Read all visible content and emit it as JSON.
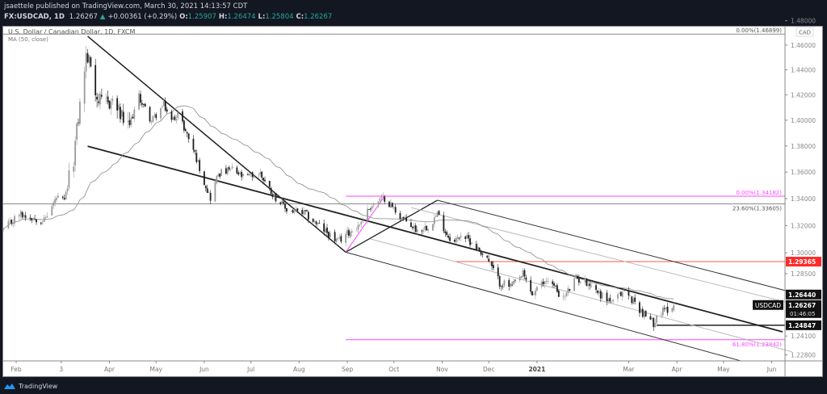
{
  "header": {
    "publish_line": "jsaettele published on TradingView.com, March 30, 2021 14:13:57 CDT",
    "symbol": "FX:USDCAD, 1D",
    "last": "1.26267",
    "change_arrow": "▲",
    "change": "+0.00361 (+0.29%)",
    "o_label": "O:",
    "o": "1.25907",
    "h_label": "H:",
    "h": "1.26474",
    "l_label": "L:",
    "l": "1.25804",
    "c_label": "C:",
    "c": "1.26267",
    "up_color": "#26a69a"
  },
  "footer": {
    "brand": "TradingView",
    "logo_icon": "tradingview-cloud-icon"
  },
  "chart_data": {
    "type": "candlestick",
    "title": "U.S. Dollar / Canadian Dollar, 1D, FXCM",
    "indicator_label": "MA (50, close)",
    "y_scale": "log",
    "currency_label": "CAD",
    "y_ticks": [
      1.48,
      1.46,
      1.44,
      1.42,
      1.4,
      1.38,
      1.36,
      1.34,
      1.32,
      1.3,
      1.285,
      1.241,
      1.228
    ],
    "x_ticks": [
      {
        "label": "Feb",
        "date": "2020-02-01"
      },
      {
        "label": "3",
        "date": "2020-03-01"
      },
      {
        "label": "Apr",
        "date": "2020-04-01"
      },
      {
        "label": "May",
        "date": "2020-05-01"
      },
      {
        "label": "Jun",
        "date": "2020-06-01"
      },
      {
        "label": "Jul",
        "date": "2020-07-01"
      },
      {
        "label": "Aug",
        "date": "2020-08-01"
      },
      {
        "label": "Sep",
        "date": "2020-09-01"
      },
      {
        "label": "Oct",
        "date": "2020-10-01"
      },
      {
        "label": "Nov",
        "date": "2020-11-01"
      },
      {
        "label": "Dec",
        "date": "2020-12-01"
      },
      {
        "label": "2021",
        "date": "2021-01-01",
        "bold": true
      },
      {
        "label": "Mar",
        "date": "2021-03-01"
      },
      {
        "label": "Apr",
        "date": "2021-04-01"
      },
      {
        "label": "May",
        "date": "2021-05-01"
      },
      {
        "label": "Jun",
        "date": "2021-06-01"
      }
    ],
    "approx_close_path": [
      [
        "2020-01-24",
        1.3166
      ],
      [
        "2020-02-03",
        1.3286
      ],
      [
        "2020-02-07",
        1.3274
      ],
      [
        "2020-02-19",
        1.3238
      ],
      [
        "2020-02-27",
        1.3406
      ],
      [
        "2020-03-03",
        1.3376
      ],
      [
        "2020-03-09",
        1.3712
      ],
      [
        "2020-03-13",
        1.412
      ],
      [
        "2020-03-17",
        1.4507
      ],
      [
        "2020-03-20",
        1.4442
      ],
      [
        "2020-03-24",
        1.4184
      ],
      [
        "2020-03-27",
        1.412
      ],
      [
        "2020-04-03",
        1.4152
      ],
      [
        "2020-04-13",
        1.393
      ],
      [
        "2020-04-20",
        1.4184
      ],
      [
        "2020-04-28",
        1.3993
      ],
      [
        "2020-05-06",
        1.412
      ],
      [
        "2020-05-11",
        1.3993
      ],
      [
        "2020-05-15",
        1.4056
      ],
      [
        "2020-05-25",
        1.3774
      ],
      [
        "2020-06-01",
        1.3527
      ],
      [
        "2020-06-05",
        1.3406
      ],
      [
        "2020-06-10",
        1.3589
      ],
      [
        "2020-06-19",
        1.3619
      ],
      [
        "2020-06-26",
        1.3558
      ],
      [
        "2020-07-07",
        1.3589
      ],
      [
        "2020-07-15",
        1.3436
      ],
      [
        "2020-07-24",
        1.3316
      ],
      [
        "2020-08-05",
        1.3286
      ],
      [
        "2020-08-14",
        1.3196
      ],
      [
        "2020-08-26",
        1.3078
      ],
      [
        "2020-08-31",
        1.3137
      ],
      [
        "2020-09-08",
        1.3196
      ],
      [
        "2020-09-16",
        1.3346
      ],
      [
        "2020-09-25",
        1.3406
      ],
      [
        "2020-10-06",
        1.3256
      ],
      [
        "2020-10-16",
        1.3166
      ],
      [
        "2020-10-23",
        1.3196
      ],
      [
        "2020-10-29",
        1.3286
      ],
      [
        "2020-11-04",
        1.3137
      ],
      [
        "2020-11-09",
        1.3078
      ],
      [
        "2020-11-13",
        1.3137
      ],
      [
        "2020-11-20",
        1.3078
      ],
      [
        "2020-11-30",
        1.296
      ],
      [
        "2020-12-08",
        1.2786
      ],
      [
        "2020-12-16",
        1.2757
      ],
      [
        "2020-12-23",
        1.2844
      ],
      [
        "2020-12-29",
        1.27
      ],
      [
        "2021-01-08",
        1.2815
      ],
      [
        "2021-01-18",
        1.2671
      ],
      [
        "2021-01-26",
        1.2815
      ],
      [
        "2021-02-03",
        1.2786
      ],
      [
        "2021-02-11",
        1.27
      ],
      [
        "2021-02-19",
        1.2643
      ],
      [
        "2021-02-26",
        1.2728
      ],
      [
        "2021-03-05",
        1.2643
      ],
      [
        "2021-03-11",
        1.2558
      ],
      [
        "2021-03-17",
        1.2501
      ],
      [
        "2021-03-19",
        1.2558
      ],
      [
        "2021-03-24",
        1.2586
      ],
      [
        "2021-03-30",
        1.26267
      ]
    ],
    "last_bar": {
      "date": "2021-03-30",
      "open": 1.25907,
      "high": 1.26474,
      "low": 1.25804,
      "close": 1.26267
    },
    "candle_colors": {
      "up": "#9a9a9a",
      "down": "#1e1e1e"
    },
    "ma_color": "#8a8a8a",
    "horizontal_levels": [
      {
        "name": "fib-0-upper",
        "price": 1.46899,
        "from": "2020-01-20",
        "label": "0.00%(1.46899)",
        "color": "#8a8a8a",
        "label_pos": "above"
      },
      {
        "name": "fib-23-6",
        "price": 1.33605,
        "from": "2020-01-20",
        "label": "23.60%(1.33605)",
        "color": "#8a8a8a",
        "label_pos": "below"
      },
      {
        "name": "fib-0-lower",
        "price": 1.34182,
        "from": "2020-08-31",
        "label": "0.00%(1.34182)",
        "color": "#ff44ff",
        "label_pos": "above"
      },
      {
        "name": "fib-61-8",
        "price": 1.23842,
        "from": "2020-08-31",
        "label": "61.80%(1.23842)",
        "color": "#ff44ff",
        "label_pos": "below"
      },
      {
        "name": "level-1-29365",
        "price": 1.29365,
        "from": "2020-11-09",
        "label": "",
        "color": "#ff5555",
        "label_pos": "none"
      },
      {
        "name": "level-1-24847",
        "price": 1.24847,
        "from": "2021-03-19",
        "label": "",
        "color": "#333333",
        "label_pos": "none",
        "width": 1.6
      }
    ],
    "trendlines": [
      {
        "name": "peak-downtrend-line",
        "p1": [
          "2020-03-18",
          1.4672
        ],
        "p2": [
          "2020-08-31",
          1.3005
        ],
        "color": "#222",
        "width": 1.5
      },
      {
        "name": "wedge-trendline",
        "p1": [
          "2020-03-18",
          1.3798
        ],
        "p2": [
          "2021-06-08",
          1.2439
        ],
        "color": "#222",
        "width": 1.8
      },
      {
        "name": "v-upleg-line",
        "p1": [
          "2020-08-31",
          1.3005
        ],
        "p2": [
          "2020-10-29",
          1.3388
        ],
        "color": "#222",
        "width": 1.3
      },
      {
        "name": "fib-anchor-line",
        "p1": [
          "2020-08-31",
          1.3005
        ],
        "p2": [
          "2020-09-25",
          1.3418
        ],
        "color": "#ff44ff",
        "width": 1
      },
      {
        "name": "channel-upper-line",
        "p1": [
          "2020-10-29",
          1.3388
        ],
        "p2": [
          "2021-06-14",
          1.2717
        ],
        "color": "#333",
        "width": 1
      },
      {
        "name": "channel-lower-line",
        "p1": [
          "2020-08-31",
          1.3005
        ],
        "p2": [
          "2021-05-12",
          1.2239
        ],
        "color": "#333",
        "width": 1
      },
      {
        "name": "channel-mid-line-1",
        "p1": [
          "2020-10-12",
          1.3333
        ],
        "p2": [
          "2021-06-14",
          1.2636
        ],
        "color": "#bbbbbb",
        "width": 1
      },
      {
        "name": "channel-mid-line-2",
        "p1": [
          "2020-09-16",
          1.3101
        ],
        "p2": [
          "2021-06-14",
          1.2301
        ],
        "color": "#bbbbbb",
        "width": 1
      }
    ],
    "price_badges": [
      {
        "name": "badge-1-29365",
        "price": 1.29365,
        "text": "1.29365",
        "bg": "#ff2a2a"
      },
      {
        "name": "badge-1-26440",
        "price": 1.2644,
        "text": "1.26440",
        "bg": "#111111"
      },
      {
        "name": "badge-last",
        "price": 1.26267,
        "text": "1.26267",
        "bg": "#111111",
        "sub": "01:46:05",
        "symbol_tag": "USDCAD"
      },
      {
        "name": "badge-1-24847",
        "price": 1.24847,
        "text": "1.24847",
        "bg": "#111111"
      }
    ]
  }
}
